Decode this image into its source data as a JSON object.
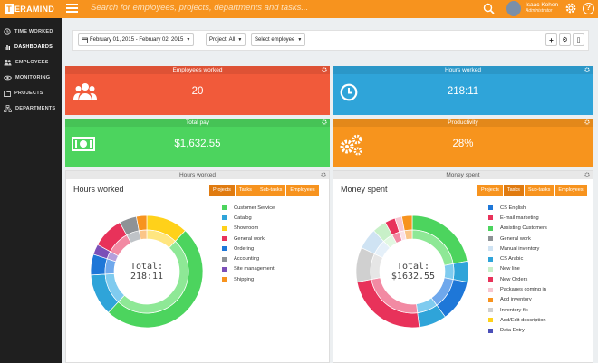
{
  "app": {
    "logo_mark": "T",
    "logo_text": "ERAMIND",
    "search_placeholder": "Search for employees, projects, departments and tasks...",
    "user_name": "Isaac Kohen",
    "user_role": "Administrator",
    "help": "?"
  },
  "sidebar": {
    "items": [
      {
        "label": "TIME WORKED",
        "icon": "clock-icon"
      },
      {
        "label": "DASHBOARDS",
        "icon": "bar-chart-icon"
      },
      {
        "label": "EMPLOYEES",
        "icon": "users-icon"
      },
      {
        "label": "MONITORING",
        "icon": "eye-icon"
      },
      {
        "label": "PROJECTS",
        "icon": "folder-icon"
      },
      {
        "label": "DEPARTMENTS",
        "icon": "sitemap-icon"
      }
    ]
  },
  "filters": {
    "date_range": "February 01, 2015 - February 02, 2015",
    "project": "Project: All",
    "employees": "Select employee",
    "add": "+",
    "settings": "⚙",
    "export": "▯"
  },
  "cards": {
    "employees": {
      "title": "Employees worked",
      "value": "20",
      "color": "#f15a3a"
    },
    "hours": {
      "title": "Hours worked",
      "value": "218:11",
      "color": "#2fa4d9"
    },
    "pay": {
      "title": "Total pay",
      "value": "$1,632.55",
      "color": "#4cd45e"
    },
    "productivity": {
      "title": "Productivity",
      "value": "28%",
      "color": "#f7941d"
    }
  },
  "hours_panel": {
    "header": "Hours worked",
    "title": "Hours worked",
    "tabs": [
      "Projects",
      "Tasks",
      "Sub-tasks",
      "Employees"
    ],
    "total_label": "Total:",
    "total_value": "218:11",
    "legend": [
      {
        "label": "Customer Service",
        "color": "#4cd45e"
      },
      {
        "label": "Catalog",
        "color": "#2fa4d9"
      },
      {
        "label": "Showroom",
        "color": "#ffd11a"
      },
      {
        "label": "General work",
        "color": "#e8325a"
      },
      {
        "label": "Ordering",
        "color": "#1e77d8"
      },
      {
        "label": "Accounting",
        "color": "#8e9296"
      },
      {
        "label": "Site management",
        "color": "#7b4fb8"
      },
      {
        "label": "Shipping",
        "color": "#f7931e"
      }
    ]
  },
  "money_panel": {
    "header": "Money spent",
    "title": "Money spent",
    "tabs": [
      "Projects",
      "Tasks",
      "Sub-tasks",
      "Employees"
    ],
    "total_label": "Total:",
    "total_value": "$1632.55",
    "legend": [
      {
        "label": "CS English",
        "color": "#1e77d8"
      },
      {
        "label": "E-mail marketing",
        "color": "#e8325a"
      },
      {
        "label": "Assisting Customers",
        "color": "#4cd45e"
      },
      {
        "label": "General work",
        "color": "#8e9296"
      },
      {
        "label": "Manual inventory",
        "color": "#cfe3f3"
      },
      {
        "label": "CS Arabic",
        "color": "#2fa4d9"
      },
      {
        "label": "New line",
        "color": "#c8f0c8"
      },
      {
        "label": "New Orders",
        "color": "#e8325a"
      },
      {
        "label": "Packages coming in",
        "color": "#f7c6d0"
      },
      {
        "label": "Add inventory",
        "color": "#f7931e"
      },
      {
        "label": "Inventory fix",
        "color": "#d0d0d0"
      },
      {
        "label": "Add/Edit description",
        "color": "#ffd11a"
      },
      {
        "label": "Data Entry",
        "color": "#4a4fb8"
      }
    ]
  }
}
